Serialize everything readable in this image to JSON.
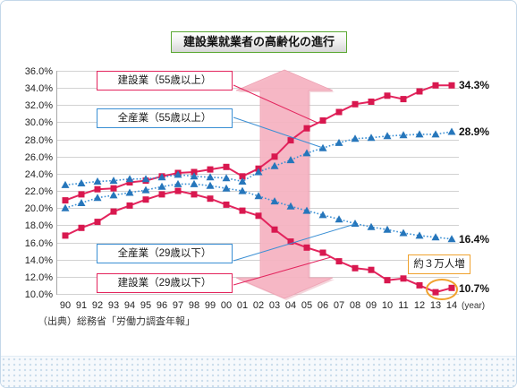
{
  "colors": {
    "construction": "#e3245d",
    "all_industry": "#3a8fd4",
    "title_border": "#5aa832",
    "callout_border": "#f0a22e",
    "arrow": "#f5b4c2"
  },
  "chart_data": {
    "type": "line",
    "title": "建設業就業者の高齢化の進行",
    "x_unit_label": "(year)",
    "categories": [
      "90",
      "91",
      "92",
      "93",
      "94",
      "95",
      "96",
      "97",
      "98",
      "99",
      "00",
      "01",
      "02",
      "03",
      "04",
      "05",
      "06",
      "07",
      "08",
      "09",
      "10",
      "11",
      "12",
      "13",
      "14"
    ],
    "ylim": [
      10,
      36
    ],
    "y_tick_labels": [
      "36.0%",
      "34.0%",
      "32.0%",
      "30.0%",
      "28.0%",
      "26.0%",
      "24.0%",
      "22.0%",
      "20.0%",
      "18.0%",
      "16.0%",
      "14.0%",
      "12.0%",
      "10.0%"
    ],
    "grid": true,
    "series": [
      {
        "name": "建設業（55歳以上）",
        "values": [
          20.9,
          21.6,
          22.2,
          22.3,
          23.0,
          23.2,
          23.7,
          24.1,
          24.2,
          24.5,
          24.8,
          23.7,
          24.6,
          26.0,
          27.9,
          29.3,
          30.2,
          31.2,
          32.1,
          32.4,
          33.1,
          32.7,
          33.6,
          34.3,
          34.3
        ],
        "end_label": "34.3%",
        "color": "#e3245d",
        "marker_color": "#d8184f",
        "marker": "square",
        "line_style": "solid"
      },
      {
        "name": "全産業（55歳以上）",
        "values": [
          22.7,
          22.9,
          23.1,
          23.2,
          23.4,
          23.4,
          23.6,
          23.9,
          23.7,
          23.6,
          23.5,
          23.1,
          24.2,
          24.9,
          25.6,
          26.4,
          27.0,
          27.6,
          28.1,
          28.2,
          28.4,
          28.5,
          28.6,
          28.6,
          28.9
        ],
        "end_label": "28.9%",
        "color": "#3a8fd4",
        "marker_color": "#2676bb",
        "marker": "triangle",
        "line_style": "dotted"
      },
      {
        "name": "全産業（29歳以下）",
        "values": [
          20.0,
          20.6,
          21.2,
          21.5,
          21.8,
          22.1,
          22.5,
          22.8,
          22.8,
          22.6,
          22.3,
          22.0,
          21.4,
          20.8,
          20.2,
          19.7,
          19.2,
          18.7,
          18.2,
          17.8,
          17.5,
          17.1,
          16.8,
          16.6,
          16.4
        ],
        "end_label": "16.4%",
        "color": "#3a8fd4",
        "marker_color": "#2676bb",
        "marker": "triangle",
        "line_style": "dotted"
      },
      {
        "name": "建設業（29歳以下）",
        "values": [
          16.8,
          17.7,
          18.4,
          19.6,
          20.3,
          21.0,
          21.6,
          22.0,
          21.6,
          21.1,
          20.4,
          19.7,
          19.1,
          17.5,
          16.1,
          15.4,
          14.8,
          13.8,
          13.0,
          12.8,
          11.6,
          11.8,
          11.0,
          10.2,
          10.7
        ],
        "end_label": "10.7%",
        "color": "#e3245d",
        "marker_color": "#d8184f",
        "marker": "square",
        "line_style": "solid"
      }
    ],
    "annotation": {
      "text": "約３万人増"
    },
    "source": "（出典）総務省「労働力調査年報」"
  }
}
